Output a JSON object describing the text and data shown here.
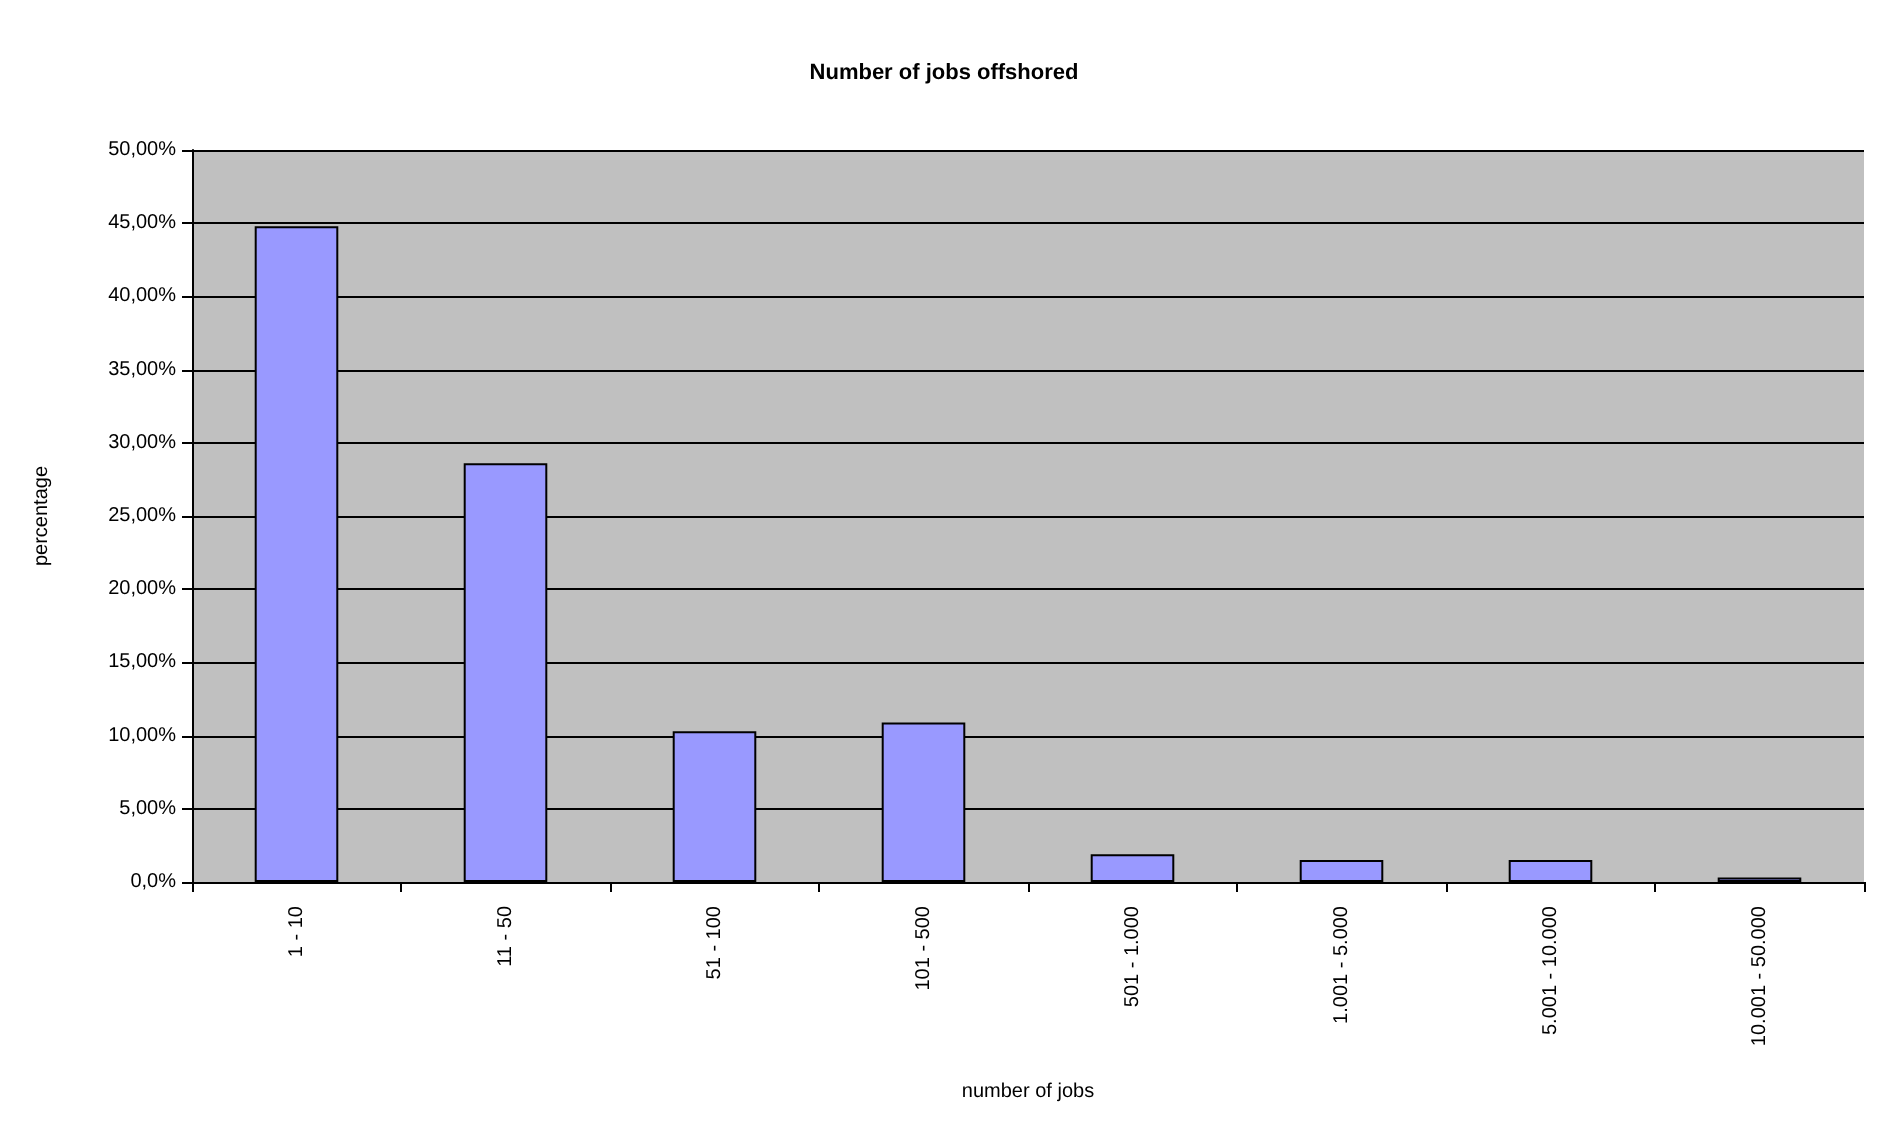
{
  "chart_data": {
    "type": "bar",
    "title": "Number of jobs offshored",
    "xlabel": "number of jobs",
    "ylabel": "percentage",
    "categories": [
      "1 - 10",
      "11 - 50",
      "51 - 100",
      "101 - 500",
      "501 - 1.000",
      "1.001 - 5.000",
      "5.001 - 10.000",
      "10.001 - 50.000"
    ],
    "values": [
      44.8,
      28.6,
      10.3,
      10.9,
      1.9,
      1.5,
      1.5,
      0.3
    ],
    "color": "#9999ff",
    "ylim": [
      0,
      50
    ],
    "yticks": [
      {
        "value": 0,
        "label": "0,0%"
      },
      {
        "value": 5,
        "label": "5,00%"
      },
      {
        "value": 10,
        "label": "10,00%"
      },
      {
        "value": 15,
        "label": "15,00%"
      },
      {
        "value": 20,
        "label": "20,00%"
      },
      {
        "value": 25,
        "label": "25,00%"
      },
      {
        "value": 30,
        "label": "30,00%"
      },
      {
        "value": 35,
        "label": "35,00%"
      },
      {
        "value": 40,
        "label": "40,00%"
      },
      {
        "value": 45,
        "label": "45,00%"
      },
      {
        "value": 50,
        "label": "50,00%"
      }
    ],
    "grid": "y"
  }
}
